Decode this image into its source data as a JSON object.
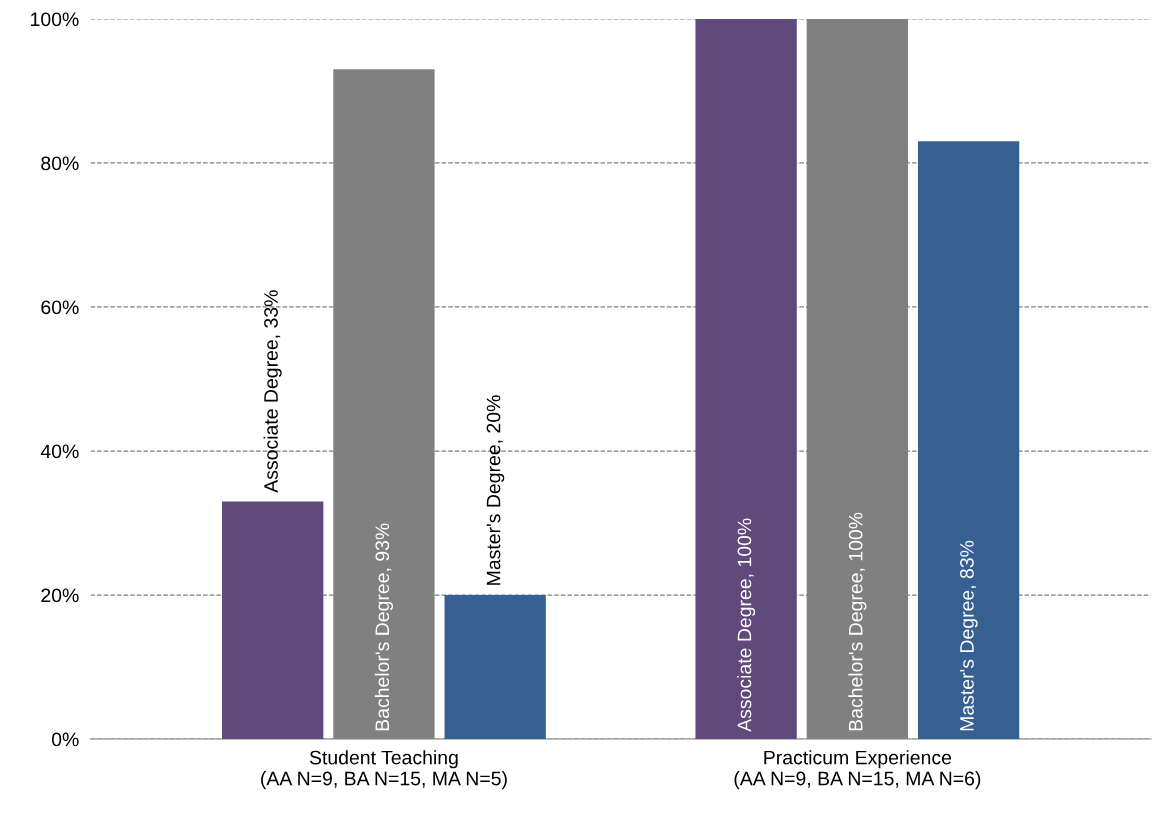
{
  "chart_data": {
    "type": "bar",
    "categories": [
      "Student Teaching\n(AA N=9, BA N=15, MA N=5)",
      "Practicum Experience\n(AA N=9, BA N=15, MA N=6)"
    ],
    "series": [
      {
        "name": "Associate Degree",
        "color": "#604a7b",
        "values": [
          33,
          100
        ],
        "value_labels": [
          ", 33%",
          ", 100%"
        ]
      },
      {
        "name": "Bachelor's Degree",
        "color": "#808080",
        "values": [
          93,
          100
        ],
        "value_labels": [
          ", 93%",
          ", 100%"
        ]
      },
      {
        "name": "Master's Degree",
        "color": "#376092",
        "values": [
          20,
          83
        ],
        "value_labels": [
          ", 20%",
          ", 83%"
        ]
      }
    ],
    "ylim": [
      0,
      100
    ],
    "yticks": [
      {
        "value": 0,
        "label": "0%"
      },
      {
        "value": 20,
        "label": "20%"
      },
      {
        "value": 40,
        "label": "40%"
      },
      {
        "value": 60,
        "label": "60%"
      },
      {
        "value": 80,
        "label": "80%"
      },
      {
        "value": 100,
        "label": "100%"
      }
    ],
    "grid": "y",
    "line_style": "dashed",
    "legend": false
  }
}
